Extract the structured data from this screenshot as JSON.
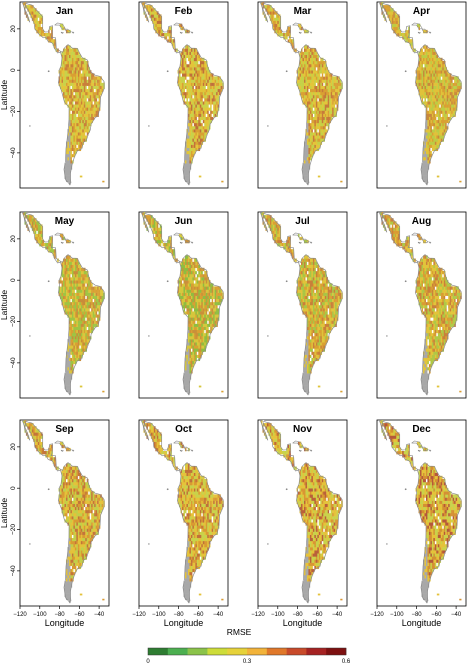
{
  "panels": [
    {
      "title": "Jan",
      "cls": [
        "#c9d24a",
        "#e3c53a",
        "#d9a033",
        "#c9803a"
      ]
    },
    {
      "title": "Feb",
      "cls": [
        "#c9d24a",
        "#e3c53a",
        "#d9a033",
        "#c0703a"
      ]
    },
    {
      "title": "Mar",
      "cls": [
        "#c5d146",
        "#e3c53a",
        "#d9a033",
        "#c77a3a"
      ]
    },
    {
      "title": "Apr",
      "cls": [
        "#bccc44",
        "#e0c23a",
        "#d9a033",
        "#c9883a"
      ]
    },
    {
      "title": "May",
      "cls": [
        "#9fc443",
        "#dcc63c",
        "#d9a033",
        "#c98c3a"
      ]
    },
    {
      "title": "Jun",
      "cls": [
        "#8fbd40",
        "#d6c73c",
        "#d9a033",
        "#c9903a"
      ]
    },
    {
      "title": "Jul",
      "cls": [
        "#a8c645",
        "#e0c43a",
        "#d9a033",
        "#c9803a"
      ]
    },
    {
      "title": "Aug",
      "cls": [
        "#b0c845",
        "#e2c43a",
        "#d99d33",
        "#c9803a"
      ]
    },
    {
      "title": "Sep",
      "cls": [
        "#c2cf48",
        "#e4c23a",
        "#d99a33",
        "#c3753a"
      ]
    },
    {
      "title": "Oct",
      "cls": [
        "#c9d24a",
        "#e5c23a",
        "#d99a33",
        "#c0703a"
      ]
    },
    {
      "title": "Nov",
      "cls": [
        "#c9d24a",
        "#e5c23a",
        "#d99633",
        "#b9603a"
      ]
    },
    {
      "title": "Dec",
      "cls": [
        "#c9d24a",
        "#e5c23a",
        "#d49033",
        "#b5583a"
      ]
    }
  ],
  "axes": {
    "xlabel": "Longitude",
    "ylabel": "Latitude",
    "xticks": [
      "−120",
      "−100",
      "−80",
      "−60",
      "−40"
    ],
    "xlim": [
      -120,
      -30
    ],
    "ylim": [
      -57,
      33
    ],
    "yticks": [
      {
        "value": 20,
        "label": "20"
      },
      {
        "value": 0,
        "label": "0"
      },
      {
        "value": -20,
        "label": "−20"
      },
      {
        "value": -40,
        "label": "−40"
      }
    ]
  },
  "colorbar": {
    "title": "RMSE",
    "colors": [
      "#2e7d32",
      "#4caf50",
      "#8bc34a",
      "#cddc39",
      "#e6d23a",
      "#f2b33a",
      "#e0782a",
      "#c84a2a",
      "#a52222",
      "#7d1010"
    ],
    "tick_labels": [
      "0",
      "0.3",
      "0.6"
    ],
    "tick_values": [
      0,
      0.3,
      0.6
    ],
    "min": 0,
    "max": 0.6
  },
  "colors": {
    "land_outline": "#8a8a8a",
    "no_data": "#a8a8a8",
    "base_land": "#cfd645"
  }
}
